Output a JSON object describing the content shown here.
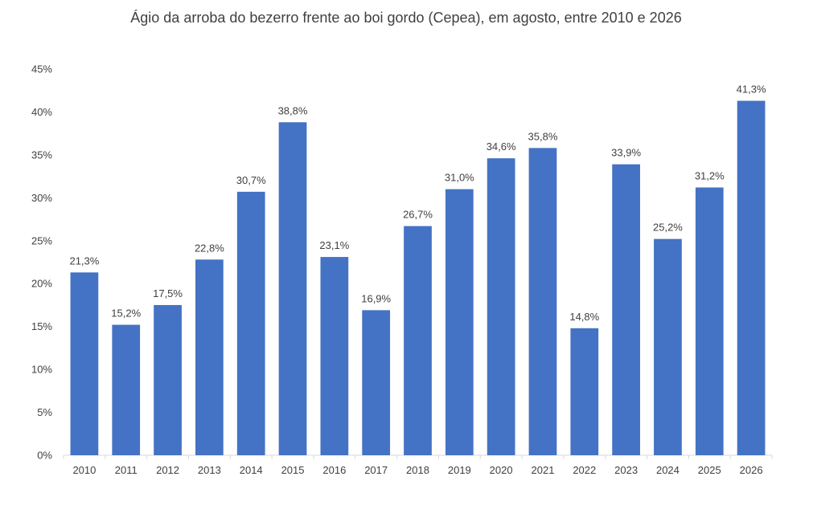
{
  "chart_data": {
    "type": "bar",
    "title": "Ágio da arroba do bezerro frente ao boi gordo (Cepea), em agosto, entre 2010 e 2026",
    "xlabel": "",
    "ylabel": "",
    "categories": [
      "2010",
      "2011",
      "2012",
      "2013",
      "2014",
      "2015",
      "2016",
      "2017",
      "2018",
      "2019",
      "2020",
      "2021",
      "2022",
      "2023",
      "2024",
      "2025",
      "2026"
    ],
    "values": [
      21.3,
      15.2,
      17.5,
      22.8,
      30.7,
      38.8,
      23.1,
      16.9,
      26.7,
      31.0,
      34.6,
      35.8,
      14.8,
      33.9,
      25.2,
      31.2,
      41.3
    ],
    "data_labels": [
      "21,3%",
      "15,2%",
      "17,5%",
      "22,8%",
      "30,7%",
      "38,8%",
      "23,1%",
      "16,9%",
      "26,7%",
      "31,0%",
      "34,6%",
      "35,8%",
      "14,8%",
      "33,9%",
      "25,2%",
      "31,2%",
      "41,3%"
    ],
    "ylim": [
      0,
      45
    ],
    "y_ticks": [
      0,
      5,
      10,
      15,
      20,
      25,
      30,
      35,
      40,
      45
    ],
    "y_tick_labels": [
      "0%",
      "5%",
      "10%",
      "15%",
      "20%",
      "25%",
      "30%",
      "35%",
      "40%",
      "45%"
    ],
    "grid": false,
    "legend": "none",
    "bar_color": "#4472C4",
    "axis_color": "#D9D9D9",
    "text_color": "#404040"
  }
}
